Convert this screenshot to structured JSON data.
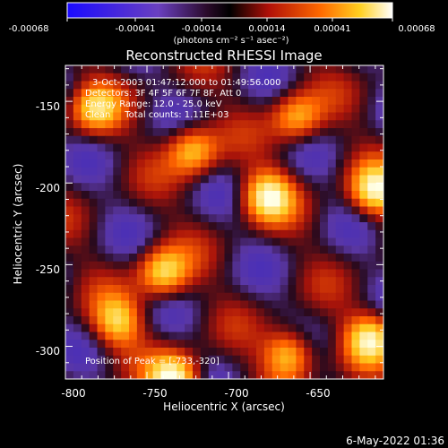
{
  "colorbar": {
    "tick_labels": [
      "-0.00068",
      "-0.00041",
      "-0.00014",
      "0.00014",
      "0.00041",
      "0.00068"
    ],
    "unit_label": "(photons cm⁻² s⁻¹ asec⁻²)",
    "range": [
      -0.00068,
      0.00068
    ]
  },
  "plot": {
    "title": "Reconstructed RHESSI Image",
    "xlabel": "Heliocentric X (arcsec)",
    "ylabel": "Heliocentric Y (arcsec)",
    "x_ticks": [
      "-800",
      "-750",
      "-700",
      "-650"
    ],
    "y_ticks": [
      "-150",
      "-200",
      "-250",
      "-300"
    ],
    "xlim": [
      -800,
      -605
    ],
    "ylim": [
      -320,
      -128
    ]
  },
  "annotations": {
    "line1": "3-Oct-2003 01:47:12.000 to 01:49:56.000",
    "line2": "Detectors: 3F 4F 5F 6F 7F 8F, Att 0",
    "line3": "Energy Range: 12.0 - 25.0 keV",
    "line4": "Clean     Total counts: 1.11E+03",
    "peak": "Position of Peak = [-733,-320]"
  },
  "footer": {
    "timestamp": "6-May-2022 01:36"
  },
  "chart_data": {
    "type": "heatmap",
    "title": "Reconstructed RHESSI Image",
    "xlabel": "Heliocentric X (arcsec)",
    "ylabel": "Heliocentric Y (arcsec)",
    "x_range": [
      -800,
      -605
    ],
    "y_range": [
      -320,
      -128
    ],
    "peaks": [
      {
        "x": -733,
        "y": -320,
        "value": 0.00068
      },
      {
        "x": -676,
        "y": -208,
        "value": 0.0006
      },
      {
        "x": -610,
        "y": -205,
        "value": 0.00058
      },
      {
        "x": -740,
        "y": -255,
        "value": 0.00055
      },
      {
        "x": -663,
        "y": -305,
        "value": 0.00055
      },
      {
        "x": -613,
        "y": -295,
        "value": 0.00055
      },
      {
        "x": -722,
        "y": -180,
        "value": 0.0005
      },
      {
        "x": -768,
        "y": -285,
        "value": 0.00048
      },
      {
        "x": -782,
        "y": -155,
        "value": 0.00045
      },
      {
        "x": -658,
        "y": -160,
        "value": 0.00045
      }
    ]
  }
}
